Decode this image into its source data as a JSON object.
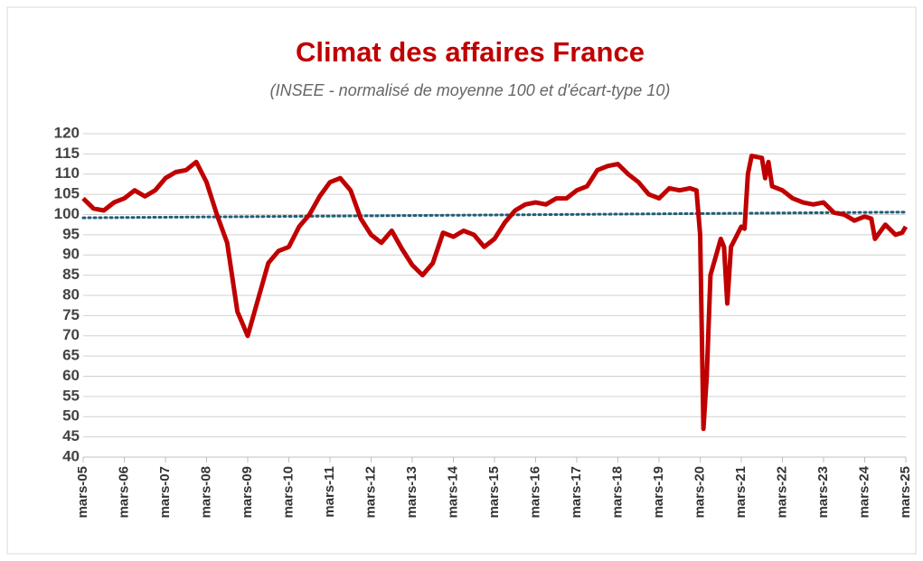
{
  "chart_data": {
    "type": "line",
    "title": "Climat des affaires France",
    "subtitle": "(INSEE - normalisé de moyenne 100 et d'écart-type 10)",
    "x": [
      2005.17,
      2005.42,
      2005.67,
      2005.92,
      2006.17,
      2006.42,
      2006.67,
      2006.92,
      2007.17,
      2007.42,
      2007.67,
      2007.92,
      2008.17,
      2008.42,
      2008.67,
      2008.92,
      2009.17,
      2009.42,
      2009.67,
      2009.92,
      2010.17,
      2010.42,
      2010.67,
      2010.92,
      2011.17,
      2011.42,
      2011.67,
      2011.92,
      2012.17,
      2012.42,
      2012.67,
      2012.92,
      2013.17,
      2013.42,
      2013.67,
      2013.92,
      2014.17,
      2014.42,
      2014.67,
      2014.92,
      2015.17,
      2015.42,
      2015.67,
      2015.92,
      2016.17,
      2016.42,
      2016.67,
      2016.92,
      2017.17,
      2017.42,
      2017.67,
      2017.92,
      2018.17,
      2018.42,
      2018.67,
      2018.92,
      2019.17,
      2019.42,
      2019.67,
      2019.92,
      2020.08,
      2020.17,
      2020.25,
      2020.33,
      2020.42,
      2020.67,
      2020.75,
      2020.83,
      2020.92,
      2021.17,
      2021.25,
      2021.33,
      2021.42,
      2021.67,
      2021.75,
      2021.83,
      2021.92,
      2022.17,
      2022.42,
      2022.67,
      2022.92,
      2023.17,
      2023.42,
      2023.67,
      2023.92,
      2024.17,
      2024.33,
      2024.42,
      2024.67,
      2024.92,
      2025.08,
      2025.17
    ],
    "series": [
      {
        "color": "#c00000",
        "values": [
          104,
          101.5,
          101,
          103,
          104,
          106,
          104.5,
          106,
          109,
          110.5,
          111,
          113,
          108,
          100,
          93,
          76,
          70,
          79,
          88,
          91,
          92,
          97,
          100,
          104.5,
          108,
          109,
          106,
          99,
          95,
          93,
          96,
          91.5,
          87.5,
          85,
          88,
          95.5,
          94.5,
          96,
          95,
          92,
          94,
          98,
          101,
          102.5,
          103,
          102.5,
          104,
          104,
          106,
          107,
          111,
          112,
          112.5,
          110,
          108,
          105,
          104,
          106.5,
          106,
          106.5,
          106,
          95,
          47,
          60,
          85,
          94,
          92,
          78,
          92,
          97,
          96.5,
          110,
          114.5,
          114,
          109,
          113,
          107,
          106,
          104,
          103,
          102.5,
          103,
          100.5,
          100,
          98.5,
          99.5,
          99,
          94,
          97.5,
          95,
          95.5,
          97
        ]
      }
    ],
    "trend_line": {
      "color": "#1f5f7a",
      "values": [
        99.2,
        100.6
      ]
    },
    "xlim": [
      2005.17,
      2025.17
    ],
    "xticks": [
      {
        "value": 2005.17,
        "label": "mars-05"
      },
      {
        "value": 2006.17,
        "label": "mars-06"
      },
      {
        "value": 2007.17,
        "label": "mars-07"
      },
      {
        "value": 2008.17,
        "label": "mars-08"
      },
      {
        "value": 2009.17,
        "label": "mars-09"
      },
      {
        "value": 2010.17,
        "label": "mars-10"
      },
      {
        "value": 2011.17,
        "label": "mars-11"
      },
      {
        "value": 2012.17,
        "label": "mars-12"
      },
      {
        "value": 2013.17,
        "label": "mars-13"
      },
      {
        "value": 2014.17,
        "label": "mars-14"
      },
      {
        "value": 2015.17,
        "label": "mars-15"
      },
      {
        "value": 2016.17,
        "label": "mars-16"
      },
      {
        "value": 2017.17,
        "label": "mars-17"
      },
      {
        "value": 2018.17,
        "label": "mars-18"
      },
      {
        "value": 2019.17,
        "label": "mars-19"
      },
      {
        "value": 2020.17,
        "label": "mars-20"
      },
      {
        "value": 2021.17,
        "label": "mars-21"
      },
      {
        "value": 2022.17,
        "label": "mars-22"
      },
      {
        "value": 2023.17,
        "label": "mars-23"
      },
      {
        "value": 2024.17,
        "label": "mars-24"
      },
      {
        "value": 2025.17,
        "label": "mars-25"
      }
    ],
    "ylim": [
      40,
      120
    ],
    "yticks": [
      40,
      45,
      50,
      55,
      60,
      65,
      70,
      75,
      80,
      85,
      90,
      95,
      100,
      105,
      110,
      115,
      120
    ],
    "grid": true
  }
}
